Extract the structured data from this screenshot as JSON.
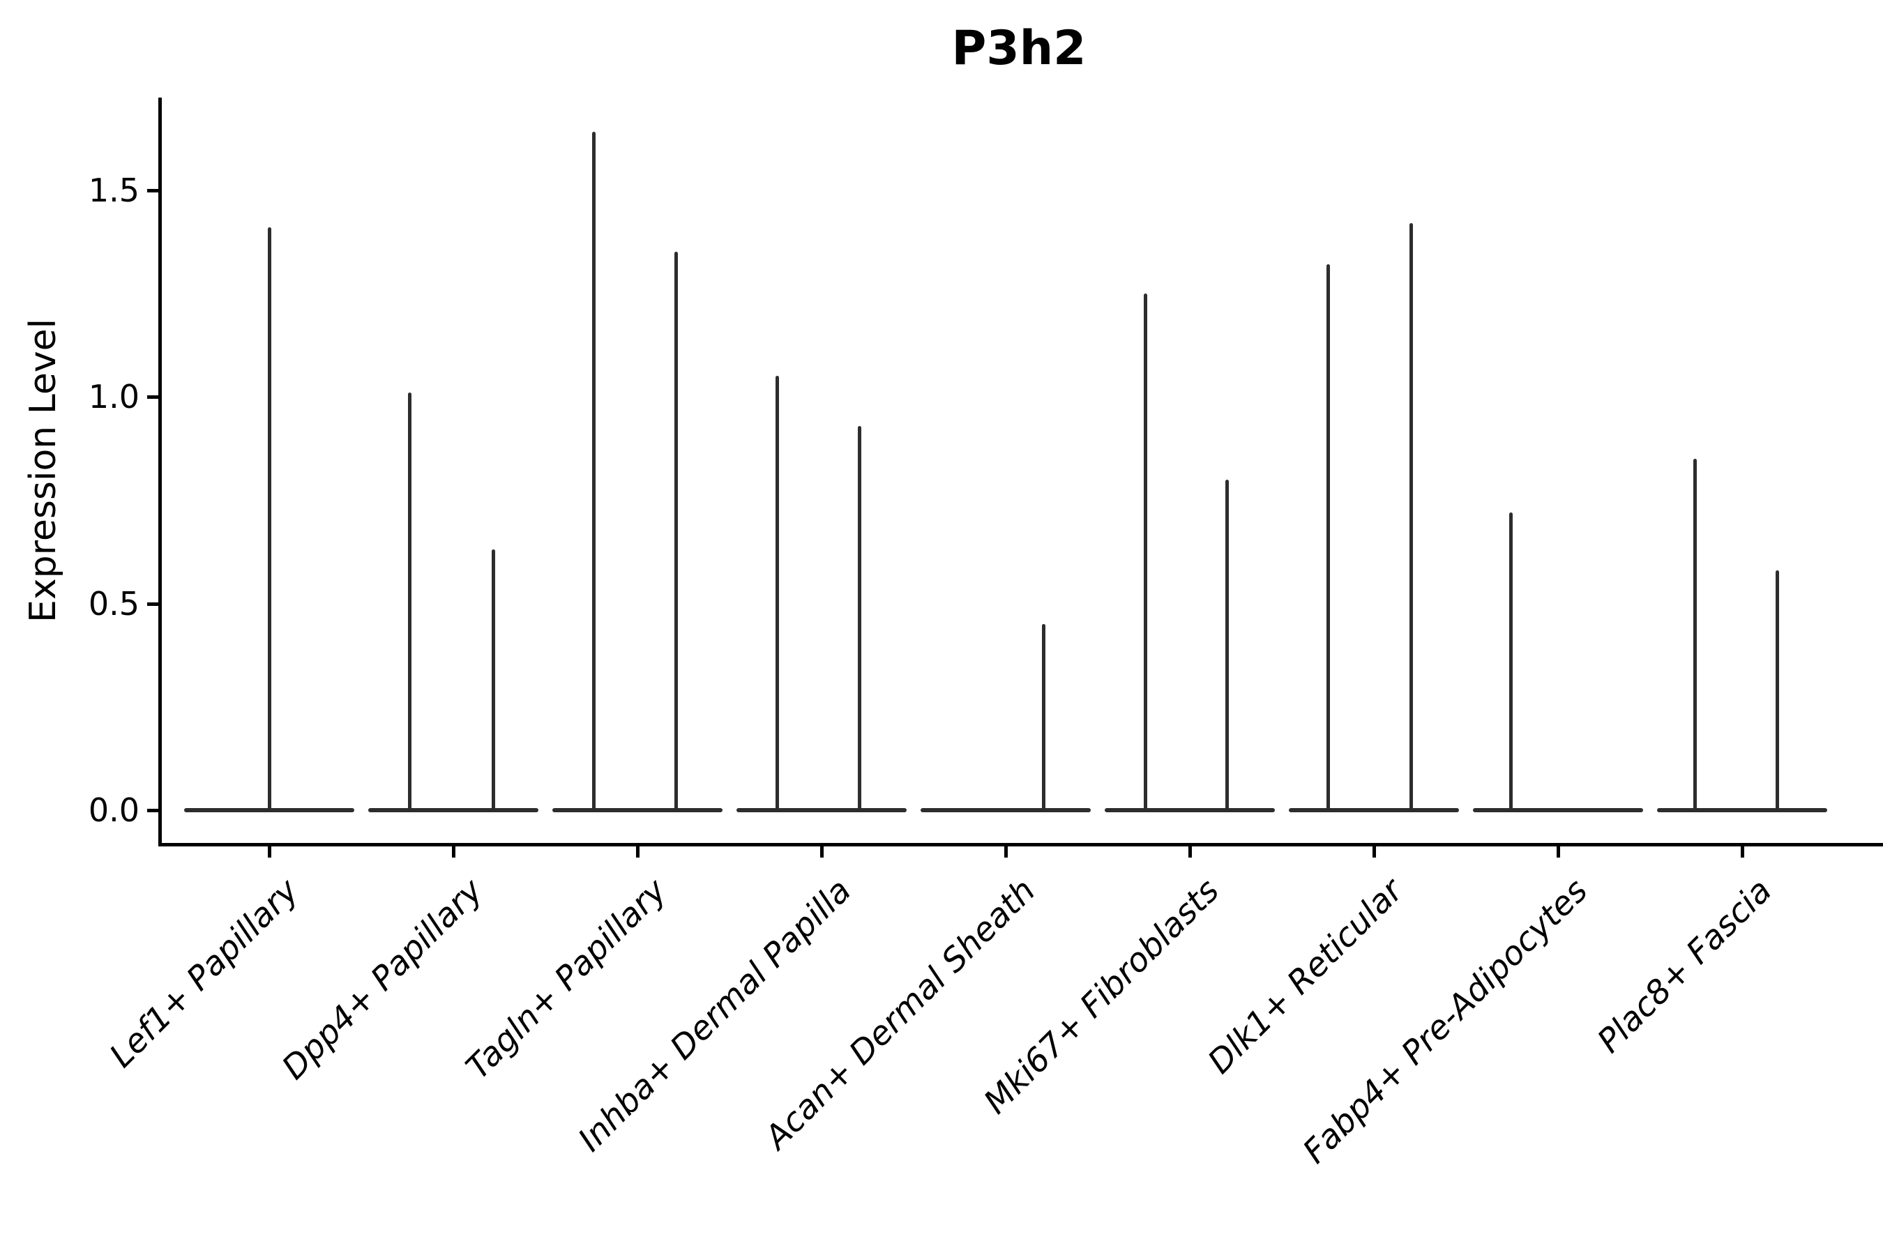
{
  "title": "P3h2",
  "chart_data": {
    "type": "violin",
    "title": "P3h2",
    "xlabel": "",
    "ylabel": "Expression Level",
    "ylim": [
      -0.08,
      1.72
    ],
    "grid": false,
    "legend_position": "none",
    "y_ticks": [
      {
        "value": 0.0,
        "label": "0.0"
      },
      {
        "value": 0.5,
        "label": "0.5"
      },
      {
        "value": 1.0,
        "label": "1.0"
      },
      {
        "value": 1.5,
        "label": "1.5"
      }
    ],
    "categories": [
      "Lef1+ Papillary",
      "Dpp4+ Papillary",
      "Tagln+ Papillary",
      "Inhba+ Dermal Papilla",
      "Acan+ Dermal Sheath",
      "Mki67+ Fibroblasts",
      "Dlk1+ Reticular",
      "Fabp4+ Pre-Adipocytes",
      "Plac8+ Fascia"
    ],
    "violins": [
      {
        "category": "Lef1+ Papillary",
        "base_at_zero": true,
        "spikes": [
          {
            "pos": 0.0,
            "max": 1.41
          }
        ]
      },
      {
        "category": "Dpp4+ Papillary",
        "base_at_zero": true,
        "spikes": [
          {
            "pos": -0.235,
            "max": 1.01
          },
          {
            "pos": 0.216,
            "max": 0.63
          }
        ]
      },
      {
        "category": "Tagln+ Papillary",
        "base_at_zero": true,
        "spikes": [
          {
            "pos": -0.235,
            "max": 1.64
          },
          {
            "pos": 0.212,
            "max": 1.35
          }
        ]
      },
      {
        "category": "Inhba+ Dermal Papilla",
        "base_at_zero": true,
        "spikes": [
          {
            "pos": -0.239,
            "max": 1.05
          },
          {
            "pos": 0.208,
            "max": 0.93
          }
        ]
      },
      {
        "category": "Acan+ Dermal Sheath",
        "base_at_zero": true,
        "spikes": [
          {
            "pos": 0.205,
            "max": 0.45
          }
        ]
      },
      {
        "category": "Mki67+ Fibroblasts",
        "base_at_zero": true,
        "spikes": [
          {
            "pos": -0.242,
            "max": 1.25
          },
          {
            "pos": 0.201,
            "max": 0.8
          }
        ]
      },
      {
        "category": "Dlk1+ Reticular",
        "base_at_zero": true,
        "spikes": [
          {
            "pos": -0.25,
            "max": 1.32
          },
          {
            "pos": 0.201,
            "max": 1.42
          }
        ]
      },
      {
        "category": "Fabp4+ Pre-Adipocytes",
        "base_at_zero": true,
        "spikes": [
          {
            "pos": -0.254,
            "max": 0.72
          }
        ]
      },
      {
        "category": "Plac8+ Fascia",
        "base_at_zero": true,
        "spikes": [
          {
            "pos": -0.254,
            "max": 0.85
          },
          {
            "pos": 0.193,
            "max": 0.58
          }
        ]
      }
    ],
    "style": {
      "violin_color": "#2d2d2d",
      "axis_color": "#000000",
      "background": "#ffffff",
      "violin_base_half_width_frac": 0.462
    }
  }
}
